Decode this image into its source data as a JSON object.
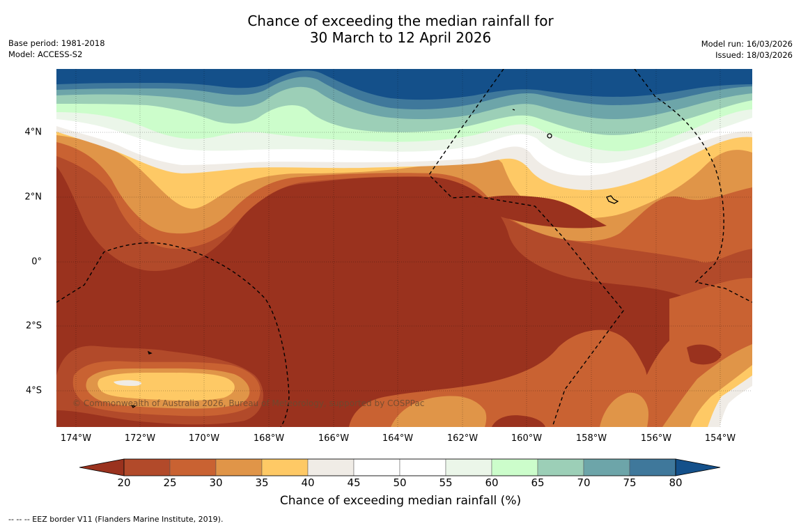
{
  "header": {
    "title_line1": "Chance of exceeding the median rainfall for",
    "title_line2": "30 March to 12 April 2026",
    "base_period": "Base period: 1981-2018",
    "model": "Model: ACCESS-S2",
    "model_run": "Model run: 16/03/2026",
    "issued": "Issued: 18/03/2026"
  },
  "map": {
    "lat_labels": [
      "4°N",
      "2°N",
      "0°",
      "2°S",
      "4°S"
    ],
    "lon_labels": [
      "174°W",
      "172°W",
      "170°W",
      "168°W",
      "166°W",
      "164°W",
      "162°W",
      "160°W",
      "158°W",
      "156°W",
      "154°W"
    ],
    "copyright": "© Commonwealth of Australia 2026, Bureau of Meteorology, supported by COSPPac"
  },
  "colorbar": {
    "title": "Chance of exceeding median rainfall (%)",
    "ticks": [
      "20",
      "25",
      "30",
      "35",
      "40",
      "45",
      "50",
      "55",
      "60",
      "65",
      "70",
      "75",
      "80"
    ],
    "colors": [
      "#9a321e",
      "#b24a2a",
      "#c96232",
      "#e09548",
      "#fec965",
      "#f0ece6",
      "#ffffff",
      "#ffffff",
      "#ebf6e9",
      "#ccfdcb",
      "#9ccfb7",
      "#6da5a9",
      "#3f789b",
      "#14508a"
    ],
    "low_extend_color": "#9a321e",
    "high_extend_color": "#14508a"
  },
  "legend": {
    "eez_line": "--  --  -- EEZ border V11 (Flanders Marine Institute, 2019)."
  }
}
